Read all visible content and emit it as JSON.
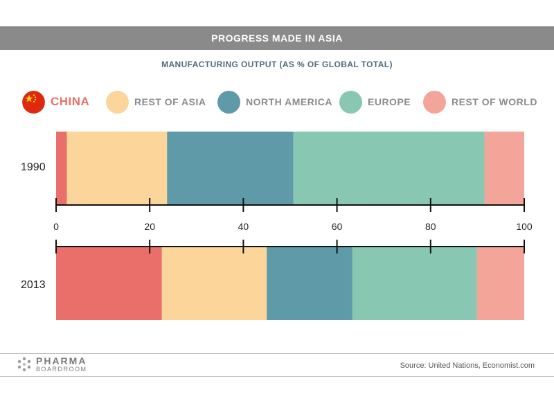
{
  "header": {
    "title": "PROGRESS MADE IN ASIA",
    "subtitle": "MANUFACTURING OUTPUT (AS % OF GLOBAL TOTAL)"
  },
  "legend": [
    {
      "label": "CHINA",
      "color": "#ea6f6a",
      "icon": "china-flag-icon"
    },
    {
      "label": "REST OF ASIA",
      "color": "#fcd59a"
    },
    {
      "label": "NORTH AMERICA",
      "color": "#5f9aa9"
    },
    {
      "label": "EUROPE",
      "color": "#88c7b2"
    },
    {
      "label": "REST OF WORLD",
      "color": "#f4a59a"
    }
  ],
  "chart_data": {
    "type": "bar",
    "orientation": "horizontal",
    "stacked": true,
    "categories": [
      "1990",
      "2013"
    ],
    "series": [
      {
        "name": "CHINA",
        "color": "#ea6f6a",
        "values": [
          2.3,
          22.6
        ]
      },
      {
        "name": "REST OF ASIA",
        "color": "#fcd59a",
        "values": [
          21.4,
          22.4
        ]
      },
      {
        "name": "NORTH AMERICA",
        "color": "#5f9aa9",
        "values": [
          27.0,
          18.3
        ]
      },
      {
        "name": "EUROPE",
        "color": "#88c7b2",
        "values": [
          40.8,
          26.6
        ]
      },
      {
        "name": "REST OF WORLD",
        "color": "#f4a59a",
        "values": [
          8.5,
          10.1
        ]
      }
    ],
    "xlim": [
      0,
      100
    ],
    "xticks": [
      "0",
      "20",
      "40",
      "60",
      "80",
      "100"
    ],
    "grid": false
  },
  "footer": {
    "logo_line1": "PHARMA",
    "logo_line2": "BOARDROOM",
    "source": "Source: United Nations, Economist.com"
  }
}
